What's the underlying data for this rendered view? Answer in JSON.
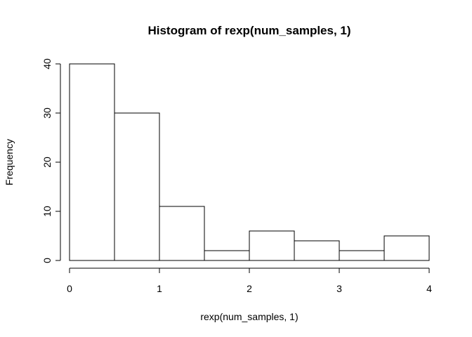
{
  "chart_data": {
    "type": "bar",
    "title": "Histogram of rexp(num_samples, 1)",
    "xlabel": "rexp(num_samples, 1)",
    "ylabel": "Frequency",
    "bins": [
      {
        "x0": 0.0,
        "x1": 0.5,
        "count": 40
      },
      {
        "x0": 0.5,
        "x1": 1.0,
        "count": 30
      },
      {
        "x0": 1.0,
        "x1": 1.5,
        "count": 11
      },
      {
        "x0": 1.5,
        "x1": 2.0,
        "count": 2
      },
      {
        "x0": 2.0,
        "x1": 2.5,
        "count": 6
      },
      {
        "x0": 2.5,
        "x1": 3.0,
        "count": 4
      },
      {
        "x0": 3.0,
        "x1": 3.5,
        "count": 2
      },
      {
        "x0": 3.5,
        "x1": 4.0,
        "count": 5
      }
    ],
    "x_ticks": [
      0,
      1,
      2,
      3,
      4
    ],
    "x_tick_labels": [
      "0",
      "1",
      "2",
      "3",
      "4"
    ],
    "y_ticks": [
      0,
      10,
      20,
      30,
      40
    ],
    "y_tick_labels": [
      "0",
      "10",
      "20",
      "30",
      "40"
    ],
    "xlim": [
      0,
      4
    ],
    "ylim": [
      0,
      40
    ],
    "grid": false,
    "bar_fill": "#ffffff",
    "bar_stroke": "#000000"
  }
}
